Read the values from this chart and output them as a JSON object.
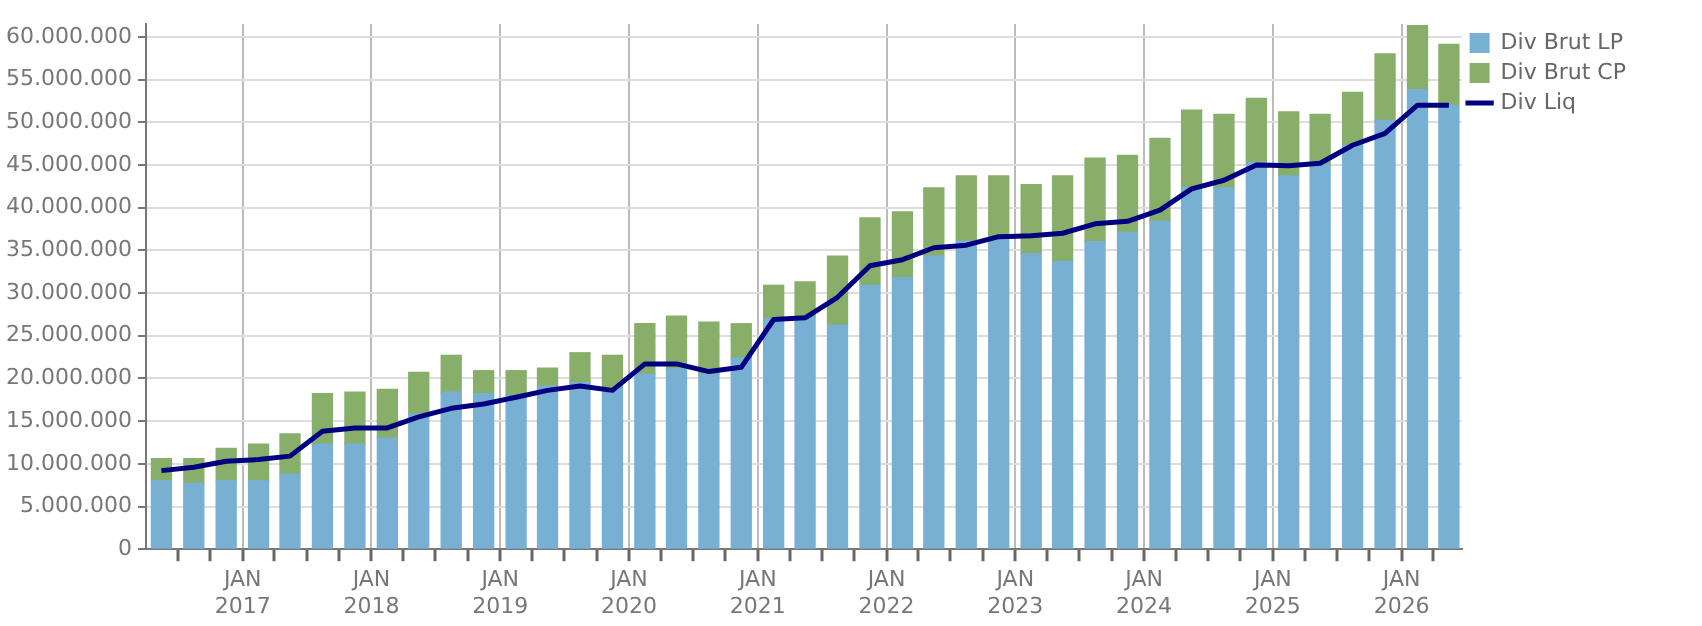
{
  "chart_data": {
    "type": "bar",
    "stacked": true,
    "x": [
      "2016-05-15",
      "2016-08-15",
      "2016-11-15",
      "2017-02-15",
      "2017-05-15",
      "2017-08-15",
      "2017-11-15",
      "2018-02-15",
      "2018-05-15",
      "2018-08-15",
      "2018-11-15",
      "2019-02-15",
      "2019-05-15",
      "2019-08-15",
      "2019-11-15",
      "2020-02-15",
      "2020-05-15",
      "2020-08-15",
      "2020-11-15",
      "2021-02-15",
      "2021-05-15",
      "2021-08-15",
      "2021-11-15",
      "2022-02-15",
      "2022-05-15",
      "2022-08-15",
      "2022-11-15",
      "2023-02-15",
      "2023-05-15",
      "2023-08-15",
      "2023-11-15",
      "2024-02-15",
      "2024-05-15",
      "2024-08-15",
      "2024-11-15",
      "2025-02-15",
      "2025-05-15",
      "2025-08-15",
      "2025-11-15",
      "2026-02-15",
      "2026-05-15"
    ],
    "series": [
      {
        "name": "Div Brut LP",
        "color": "#78b0d3",
        "values": [
          8000000,
          7700000,
          8000000,
          8000000,
          8800000,
          12300000,
          12300000,
          13000000,
          15800000,
          18400000,
          18200000,
          18000000,
          19100000,
          19500000,
          18800000,
          20500000,
          21100000,
          20500000,
          22400000,
          27000000,
          27200000,
          26200000,
          30900000,
          31800000,
          34300000,
          36100000,
          36600000,
          34600000,
          33700000,
          36000000,
          37100000,
          38400000,
          42400000,
          42300000,
          45300000,
          43700000,
          45000000,
          47300000,
          50200000,
          53800000,
          52000000
        ]
      },
      {
        "name": "Div Brut CP",
        "color": "#88af69",
        "values": [
          2600000,
          2900000,
          3800000,
          4300000,
          4700000,
          5900000,
          6100000,
          5700000,
          4900000,
          4300000,
          2700000,
          2900000,
          2100000,
          3500000,
          3900000,
          5900000,
          6200000,
          6100000,
          4000000,
          3900000,
          4100000,
          8100000,
          7900000,
          7700000,
          8000000,
          7600000,
          7100000,
          8100000,
          10000000,
          9800000,
          9000000,
          9700000,
          9000000,
          8600000,
          7500000,
          7500000,
          5900000,
          6200000,
          7800000,
          7500000,
          7100000
        ]
      },
      {
        "name": "Div Liq",
        "type": "line",
        "color": "#000080",
        "values": [
          9200000,
          9600000,
          10300000,
          10500000,
          10900000,
          13800000,
          14200000,
          14200000,
          15500000,
          16500000,
          17000000,
          17800000,
          18600000,
          19100000,
          18600000,
          21700000,
          21700000,
          20800000,
          21300000,
          26900000,
          27100000,
          29500000,
          33200000,
          33900000,
          35300000,
          35600000,
          36600000,
          36700000,
          37000000,
          38100000,
          38400000,
          39700000,
          42200000,
          43200000,
          45000000,
          44900000,
          45200000,
          47300000,
          48700000,
          52000000,
          52000000
        ]
      }
    ],
    "xlim": [
      "2016-04-01",
      "2026-06-20"
    ],
    "xticks": [
      {
        "value": "2016-07",
        "label": null
      },
      {
        "value": "2016-10",
        "label": null
      },
      {
        "value": "2017-01",
        "label": "JAN 2017"
      },
      {
        "value": "2017-04",
        "label": null
      },
      {
        "value": "2017-07",
        "label": null
      },
      {
        "value": "2017-10",
        "label": null
      },
      {
        "value": "2018-01",
        "label": "JAN 2018"
      },
      {
        "value": "2018-04",
        "label": null
      },
      {
        "value": "2018-07",
        "label": null
      },
      {
        "value": "2018-10",
        "label": null
      },
      {
        "value": "2019-01",
        "label": "JAN 2019"
      },
      {
        "value": "2019-04",
        "label": null
      },
      {
        "value": "2019-07",
        "label": null
      },
      {
        "value": "2019-10",
        "label": null
      },
      {
        "value": "2020-01",
        "label": "JAN 2020"
      },
      {
        "value": "2020-04",
        "label": null
      },
      {
        "value": "2020-07",
        "label": null
      },
      {
        "value": "2020-10",
        "label": null
      },
      {
        "value": "2021-01",
        "label": "JAN 2021"
      },
      {
        "value": "2021-04",
        "label": null
      },
      {
        "value": "2021-07",
        "label": null
      },
      {
        "value": "2021-10",
        "label": null
      },
      {
        "value": "2022-01",
        "label": "JAN 2022"
      },
      {
        "value": "2022-04",
        "label": null
      },
      {
        "value": "2022-07",
        "label": null
      },
      {
        "value": "2022-10",
        "label": null
      },
      {
        "value": "2023-01",
        "label": "JAN 2023"
      },
      {
        "value": "2023-04",
        "label": null
      },
      {
        "value": "2023-07",
        "label": null
      },
      {
        "value": "2023-10",
        "label": null
      },
      {
        "value": "2024-01",
        "label": "JAN 2024"
      },
      {
        "value": "2024-04",
        "label": null
      },
      {
        "value": "2024-07",
        "label": null
      },
      {
        "value": "2024-10",
        "label": null
      },
      {
        "value": "2025-01",
        "label": "JAN 2025"
      },
      {
        "value": "2025-04",
        "label": null
      },
      {
        "value": "2025-07",
        "label": null
      },
      {
        "value": "2025-10",
        "label": null
      },
      {
        "value": "2026-01",
        "label": "JAN 2026"
      },
      {
        "value": "2026-04",
        "label": null
      }
    ],
    "ylim": [
      0,
      61500000
    ],
    "yticks": [
      {
        "value": 0,
        "label": "0"
      },
      {
        "value": 5000000,
        "label": "5.000.000"
      },
      {
        "value": 10000000,
        "label": "10.000.000"
      },
      {
        "value": 15000000,
        "label": "15.000.000"
      },
      {
        "value": 20000000,
        "label": "20.000.000"
      },
      {
        "value": 25000000,
        "label": "25.000.000"
      },
      {
        "value": 30000000,
        "label": "30.000.000"
      },
      {
        "value": 35000000,
        "label": "35.000.000"
      },
      {
        "value": 40000000,
        "label": "40.000.000"
      },
      {
        "value": 45000000,
        "label": "45.000.000"
      },
      {
        "value": 50000000,
        "label": "50.000.000"
      },
      {
        "value": 55000000,
        "label": "55.000.000"
      },
      {
        "value": 60000000,
        "label": "60.000.000"
      }
    ],
    "grid": true,
    "legend": "top right"
  }
}
